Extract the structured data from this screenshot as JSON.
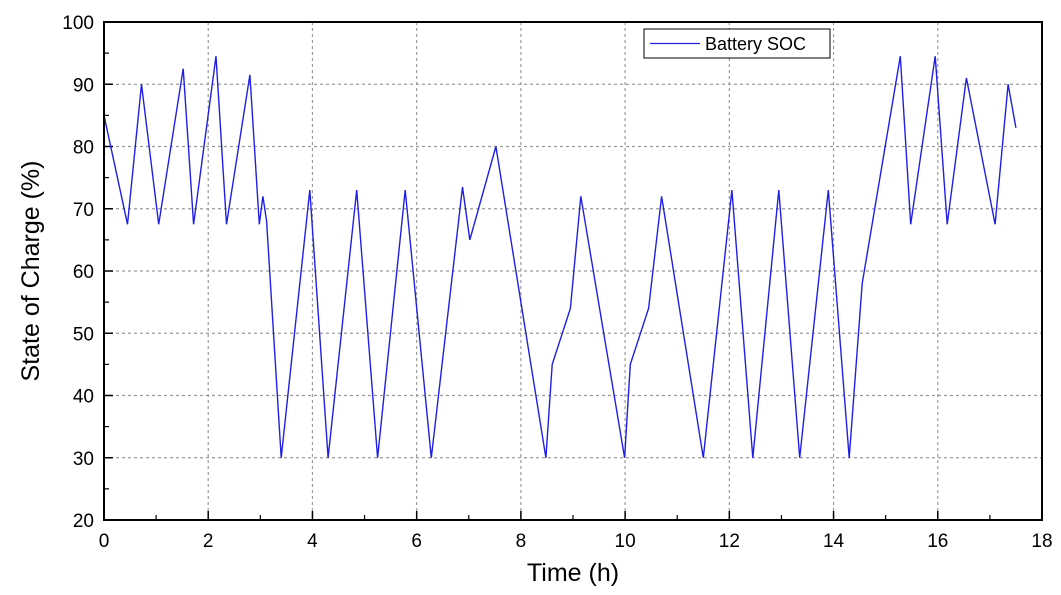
{
  "chart_data": {
    "type": "line",
    "xlabel": "Time (h)",
    "ylabel": "State of Charge (%)",
    "xlim": [
      0,
      18
    ],
    "ylim": [
      20,
      100
    ],
    "x_ticks": [
      0,
      2,
      4,
      6,
      8,
      10,
      12,
      14,
      16,
      18
    ],
    "y_ticks": [
      20,
      30,
      40,
      50,
      60,
      70,
      80,
      90,
      100
    ],
    "grid": "dashed",
    "legend_position": "top-right",
    "series": [
      {
        "name": "Battery SOC",
        "color": "#1f1fe6",
        "x": [
          0,
          0.45,
          0.72,
          1.05,
          1.52,
          1.72,
          2.15,
          2.35,
          2.8,
          2.98,
          3.05,
          3.12,
          3.4,
          3.95,
          4.3,
          4.85,
          5.25,
          5.78,
          6.28,
          6.88,
          7.02,
          7.52,
          8.48,
          8.6,
          8.95,
          9.15,
          9.99,
          10.1,
          10.45,
          10.7,
          11.5,
          12.05,
          12.45,
          12.95,
          13.35,
          13.9,
          14.3,
          14.55,
          15.28,
          15.48,
          15.95,
          16.18,
          16.55,
          17.1,
          17.35,
          17.5
        ],
        "y": [
          85,
          67.5,
          90,
          67.5,
          92.5,
          67.5,
          94.5,
          67.5,
          91.5,
          67.5,
          72,
          68,
          30,
          73,
          30,
          73,
          30,
          73,
          30,
          73.5,
          65,
          80,
          30,
          45,
          54,
          72,
          30,
          45,
          54,
          72,
          30,
          73,
          30,
          73,
          30,
          73,
          30,
          58,
          94.5,
          67.5,
          94.5,
          67.5,
          91,
          67.5,
          90,
          83
        ]
      }
    ]
  }
}
